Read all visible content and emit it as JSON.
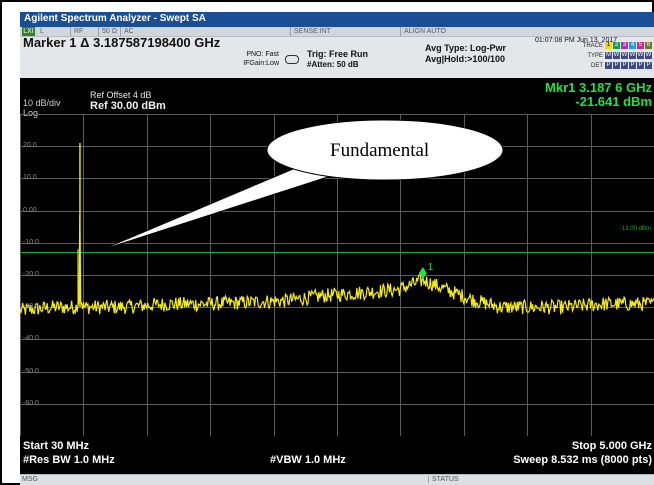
{
  "window": {
    "title": "Agilent Spectrum Analyzer - Swept SA"
  },
  "status_strip": {
    "lxi": "LXI",
    "input": "L",
    "rf": "RF",
    "impedance": "50 Ω",
    "coupling": "AC",
    "sense": "SENSE:INT",
    "align": "ALIGN AUTO"
  },
  "setup": {
    "marker_title": "Marker 1 Δ  3.187587198400 GHz",
    "pno": "PNO: Fast",
    "if_gain": "IFGain:Low",
    "trig": "Trig: Free Run",
    "atten": "#Atten: 50 dB",
    "avg_type": "Avg Type: Log-Pwr",
    "avg_hold": "Avg|Hold:>100/100",
    "datetime": "01:07:08 PM Jun 13, 2017",
    "trace_label": "TRACE",
    "trace_numbers": [
      "1",
      "2",
      "3",
      "4",
      "5",
      "6"
    ],
    "type_label": "TYPE",
    "type_values": [
      "M",
      "W",
      "W",
      "W",
      "W",
      "W"
    ],
    "det_label": "DET",
    "det_values": [
      "P",
      "P",
      "P",
      "P",
      "P",
      "P"
    ]
  },
  "display": {
    "scale_div": "10 dB/div",
    "scale_type": "Log",
    "ref_offset": "Ref Offset 4 dB",
    "ref_level": "Ref 30.00 dBm",
    "marker_freq": "Mkr1 3.187 6 GHz",
    "marker_amp": "-21.641 dBm",
    "display_line_label": "-13.00 dBm",
    "marker_number": "1",
    "callout": "Fundamental"
  },
  "footer": {
    "start_freq": "Start 30 MHz",
    "stop_freq": "Stop 5.000 GHz",
    "res_bw": "#Res BW 1.0 MHz",
    "vbw": "#VBW 1.0 MHz",
    "sweep": "Sweep  8.532 ms (8000 pts)"
  },
  "status_bar": {
    "msg": "MSG",
    "status": "STATUS"
  },
  "chart_data": {
    "type": "line",
    "x_unit": "MHz",
    "y_unit": "dBm",
    "xlim": [
      30,
      5000
    ],
    "ylim": [
      -70,
      30
    ],
    "ytick_labels": [
      "20.0",
      "10.0",
      "0.00",
      "-10.0",
      "-20.0",
      "-30.0",
      "-40.0",
      "-50.0",
      "-60.0"
    ],
    "display_line": -13,
    "grid": true,
    "series": [
      {
        "x": [
          30,
          300,
          470,
          497,
          500,
          503,
          530,
          800,
          1200,
          1500,
          1800,
          2100,
          2400,
          2700,
          3000,
          3188,
          3400,
          3600,
          3800,
          4000,
          4300,
          4600,
          5000
        ],
        "y": [
          -31,
          -30,
          -30,
          -27,
          21,
          -28,
          -30,
          -30,
          -29,
          -29,
          -28.5,
          -28,
          -26.5,
          -25.5,
          -24.5,
          -21.6,
          -25,
          -28,
          -30,
          -30,
          -30,
          -29,
          -29
        ]
      }
    ],
    "markers": [
      {
        "label": "1",
        "x": 3187.6,
        "y": -21.6
      }
    ],
    "annotations": [
      "Fundamental"
    ]
  }
}
